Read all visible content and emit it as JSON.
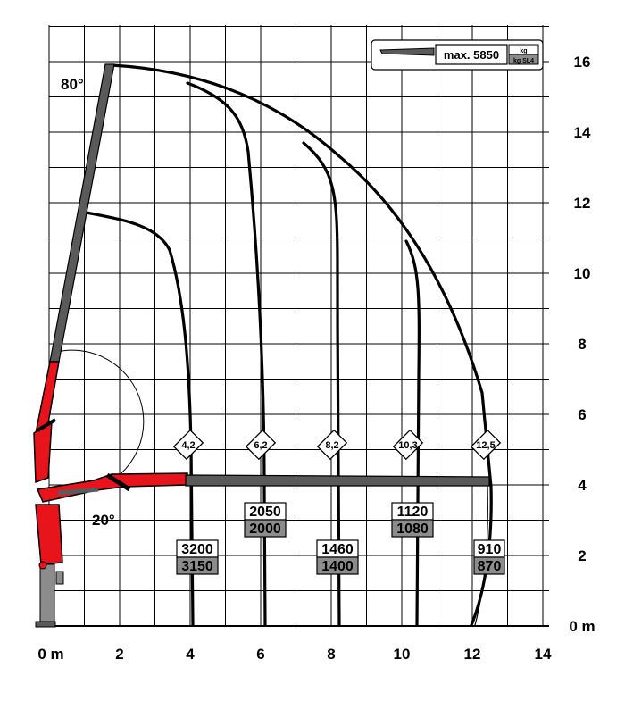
{
  "legend": {
    "max_label": "max. 5850",
    "unit_top": "kg",
    "unit_bottom": "kg SL4"
  },
  "axes": {
    "x_ticks": [
      "0 m",
      "2",
      "4",
      "6",
      "8",
      "10",
      "12",
      "14"
    ],
    "y_ticks": [
      "0 m",
      "2",
      "4",
      "6",
      "8",
      "10",
      "12",
      "14",
      "16"
    ]
  },
  "angles": {
    "top": "80°",
    "bottom": "20°"
  },
  "reach_markers": [
    "4,2",
    "6,2",
    "8,2",
    "10,3",
    "12,5"
  ],
  "capacities": [
    {
      "reach": "4,2",
      "kg": "3200",
      "kg_sl4": "3150"
    },
    {
      "reach": "6,2",
      "kg": "2050",
      "kg_sl4": "2000"
    },
    {
      "reach": "8,2",
      "kg": "1460",
      "kg_sl4": "1400"
    },
    {
      "reach": "10,3",
      "kg": "1120",
      "kg_sl4": "1080"
    },
    {
      "reach": "12,5",
      "kg": "910",
      "kg_sl4": "870"
    }
  ],
  "colors": {
    "crane_red": "#e8141b",
    "boom_gray": "#5a5a5a",
    "sl4_fill": "#8c8c8c",
    "grid": "#000000"
  }
}
